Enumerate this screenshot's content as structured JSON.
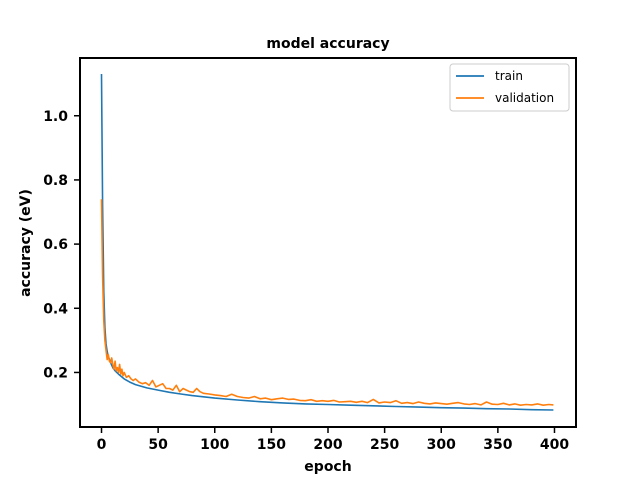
{
  "chart_data": {
    "type": "line",
    "title": "model accuracy",
    "xlabel": "epoch",
    "ylabel": "accuracy (eV)",
    "xlim": [
      -19,
      419
    ],
    "ylim": [
      0.03,
      1.18
    ],
    "xticks": [
      0,
      50,
      100,
      150,
      200,
      250,
      300,
      350,
      400
    ],
    "yticks": [
      0.2,
      0.4,
      0.6,
      0.8,
      1.0
    ],
    "ytick_labels": [
      "0.2",
      "0.4",
      "0.6",
      "0.8",
      "1.0"
    ],
    "grid": false,
    "legend_position": "top-right",
    "series": [
      {
        "name": "train",
        "color": "#1f77b4",
        "x": [
          0,
          1,
          2,
          3,
          4,
          5,
          6,
          8,
          10,
          12,
          15,
          20,
          25,
          30,
          40,
          50,
          60,
          70,
          80,
          90,
          100,
          120,
          140,
          160,
          180,
          200,
          220,
          240,
          260,
          280,
          300,
          320,
          340,
          360,
          380,
          399
        ],
        "y": [
          1.13,
          0.72,
          0.45,
          0.34,
          0.29,
          0.265,
          0.25,
          0.23,
          0.215,
          0.205,
          0.195,
          0.18,
          0.17,
          0.162,
          0.152,
          0.145,
          0.138,
          0.133,
          0.128,
          0.124,
          0.12,
          0.114,
          0.109,
          0.105,
          0.102,
          0.1,
          0.098,
          0.096,
          0.094,
          0.092,
          0.09,
          0.089,
          0.087,
          0.086,
          0.084,
          0.083
        ]
      },
      {
        "name": "validation",
        "color": "#ff7f0e",
        "x": [
          0,
          1,
          2,
          3,
          4,
          5,
          6,
          7,
          8,
          9,
          10,
          11,
          12,
          13,
          14,
          15,
          16,
          17,
          18,
          19,
          20,
          22,
          24,
          26,
          28,
          30,
          33,
          36,
          39,
          42,
          45,
          48,
          51,
          54,
          57,
          60,
          63,
          66,
          69,
          72,
          75,
          78,
          81,
          84,
          87,
          90,
          95,
          100,
          105,
          110,
          115,
          120,
          125,
          130,
          135,
          140,
          145,
          150,
          155,
          160,
          165,
          170,
          175,
          180,
          185,
          190,
          195,
          200,
          205,
          210,
          215,
          220,
          225,
          230,
          235,
          240,
          245,
          250,
          255,
          260,
          265,
          270,
          275,
          280,
          285,
          290,
          295,
          300,
          305,
          310,
          315,
          320,
          325,
          330,
          335,
          340,
          345,
          350,
          355,
          360,
          365,
          370,
          375,
          380,
          385,
          390,
          395,
          399
        ],
        "y": [
          0.74,
          0.5,
          0.36,
          0.3,
          0.27,
          0.24,
          0.255,
          0.235,
          0.23,
          0.245,
          0.225,
          0.21,
          0.235,
          0.205,
          0.215,
          0.2,
          0.225,
          0.195,
          0.21,
          0.19,
          0.2,
          0.185,
          0.19,
          0.18,
          0.175,
          0.18,
          0.17,
          0.165,
          0.168,
          0.16,
          0.175,
          0.155,
          0.16,
          0.165,
          0.15,
          0.15,
          0.145,
          0.16,
          0.14,
          0.15,
          0.145,
          0.14,
          0.138,
          0.15,
          0.14,
          0.135,
          0.133,
          0.13,
          0.128,
          0.125,
          0.132,
          0.125,
          0.122,
          0.12,
          0.125,
          0.118,
          0.12,
          0.115,
          0.118,
          0.12,
          0.116,
          0.117,
          0.113,
          0.112,
          0.115,
          0.11,
          0.112,
          0.11,
          0.113,
          0.108,
          0.109,
          0.11,
          0.107,
          0.11,
          0.106,
          0.116,
          0.105,
          0.108,
          0.106,
          0.112,
          0.104,
          0.106,
          0.103,
          0.108,
          0.104,
          0.102,
          0.105,
          0.103,
          0.101,
          0.104,
          0.106,
          0.102,
          0.1,
          0.103,
          0.099,
          0.108,
          0.101,
          0.1,
          0.104,
          0.099,
          0.102,
          0.098,
          0.1,
          0.099,
          0.102,
          0.098,
          0.1,
          0.099
        ]
      }
    ]
  }
}
